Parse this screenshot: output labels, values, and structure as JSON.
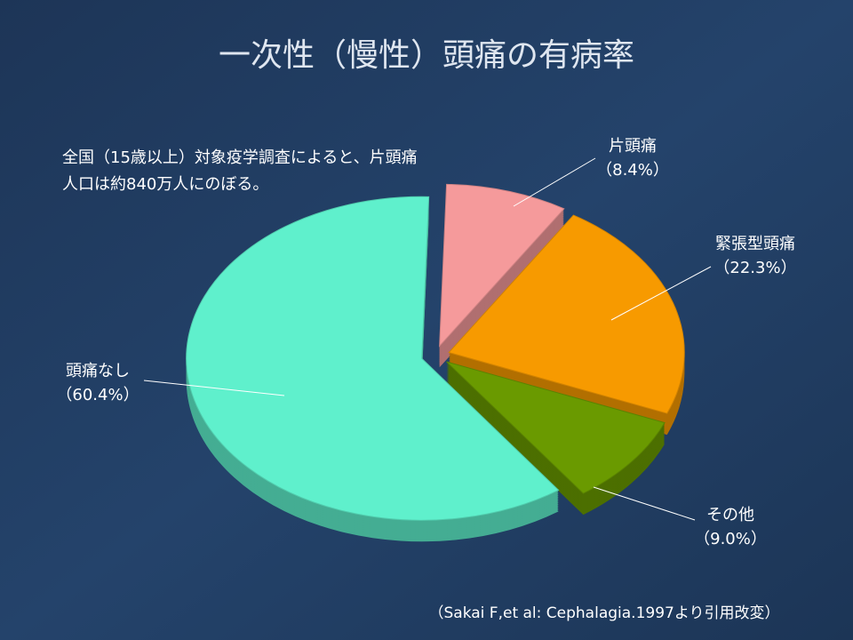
{
  "chart_data": {
    "type": "pie",
    "title": "一次性（慢性）頭痛の有病率",
    "annotation": [
      "全国（15歳以上）対象疫学調査によると、片頭痛",
      "人口は約840万人にのぼる。"
    ],
    "source": "（Sakai F,et al: Cephalagia.1997より引用改変）",
    "categories": [
      "片頭痛",
      "緊張型頭痛",
      "その他",
      "頭痛なし"
    ],
    "values": [
      8.4,
      22.3,
      9.0,
      60.4
    ],
    "value_labels": [
      "（8.4%）",
      "（22.3%）",
      "（9.0%）",
      "（60.4%）"
    ],
    "colors": [
      "#f59a9b",
      "#f79a00",
      "#6a9a00",
      "#5ff0cc"
    ]
  }
}
